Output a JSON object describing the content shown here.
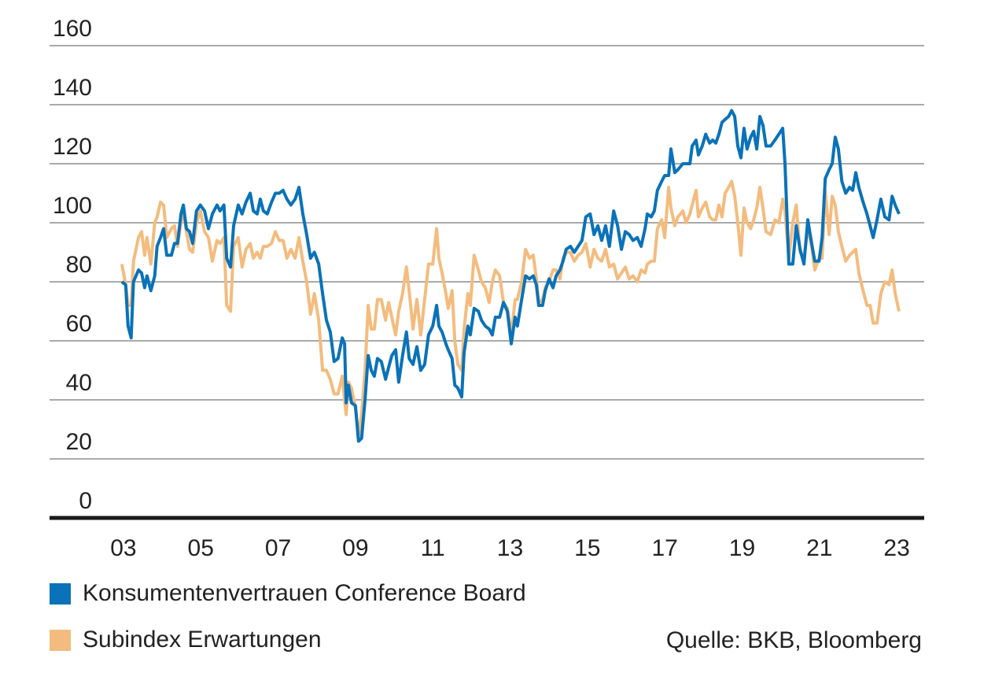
{
  "chart_data": {
    "type": "line",
    "x": [
      2002.96,
      2003.06,
      2003.12,
      2003.2,
      2003.26,
      2003.39,
      2003.47,
      2003.55,
      2003.61,
      2003.71,
      2003.81,
      2003.87,
      2003.96,
      2004.04,
      2004.12,
      2004.24,
      2004.32,
      2004.4,
      2004.49,
      2004.55,
      2004.63,
      2004.71,
      2004.79,
      2004.89,
      2004.99,
      2005.1,
      2005.2,
      2005.3,
      2005.42,
      2005.5,
      2005.6,
      2005.67,
      2005.77,
      2005.85,
      2005.97,
      2006.07,
      2006.17,
      2006.28,
      2006.36,
      2006.46,
      2006.54,
      2006.62,
      2006.72,
      2006.83,
      2006.93,
      2007.03,
      2007.13,
      2007.23,
      2007.33,
      2007.44,
      2007.54,
      2007.64,
      2007.74,
      2007.84,
      2007.94,
      2008.05,
      2008.15,
      2008.25,
      2008.35,
      2008.45,
      2008.55,
      2008.66,
      2008.72,
      2008.76,
      2008.82,
      2008.9,
      2009.0,
      2009.08,
      2009.16,
      2009.25,
      2009.33,
      2009.41,
      2009.49,
      2009.57,
      2009.67,
      2009.78,
      2009.86,
      2009.94,
      2010.04,
      2010.12,
      2010.22,
      2010.32,
      2010.39,
      2010.49,
      2010.59,
      2010.69,
      2010.79,
      2010.89,
      2011.0,
      2011.1,
      2011.16,
      2011.24,
      2011.34,
      2011.4,
      2011.5,
      2011.57,
      2011.65,
      2011.75,
      2011.81,
      2011.91,
      2011.97,
      2012.07,
      2012.18,
      2012.26,
      2012.36,
      2012.46,
      2012.54,
      2012.62,
      2012.73,
      2012.83,
      2012.93,
      2013.03,
      2013.13,
      2013.19,
      2013.3,
      2013.4,
      2013.5,
      2013.6,
      2013.68,
      2013.74,
      2013.84,
      2013.91,
      2014.01,
      2014.11,
      2014.19,
      2014.29,
      2014.37,
      2014.45,
      2014.56,
      2014.66,
      2014.76,
      2014.86,
      2014.96,
      2015.07,
      2015.17,
      2015.27,
      2015.37,
      2015.47,
      2015.57,
      2015.68,
      2015.78,
      2015.88,
      2015.98,
      2016.08,
      2016.18,
      2016.29,
      2016.39,
      2016.49,
      2016.55,
      2016.65,
      2016.73,
      2016.81,
      2016.92,
      2017.0,
      2017.1,
      2017.16,
      2017.26,
      2017.34,
      2017.47,
      2017.55,
      2017.65,
      2017.71,
      2017.81,
      2017.87,
      2017.97,
      2018.06,
      2018.16,
      2018.24,
      2018.32,
      2018.4,
      2018.48,
      2018.56,
      2018.65,
      2018.73,
      2018.81,
      2018.89,
      2018.97,
      2019.05,
      2019.13,
      2019.22,
      2019.3,
      2019.38,
      2019.46,
      2019.54,
      2019.62,
      2019.74,
      2019.85,
      2019.95,
      2020.05,
      2020.11,
      2020.21,
      2020.31,
      2020.4,
      2020.5,
      2020.6,
      2020.7,
      2020.8,
      2020.88,
      2020.99,
      2021.07,
      2021.15,
      2021.25,
      2021.33,
      2021.41,
      2021.49,
      2021.58,
      2021.68,
      2021.78,
      2021.86,
      2021.94,
      2022.02,
      2022.13,
      2022.23,
      2022.31,
      2022.39,
      2022.49,
      2022.59,
      2022.69,
      2022.8,
      2022.88,
      2022.96,
      2023.06
    ],
    "series": [
      {
        "name": "Konsumentenvertrauen Conference Board",
        "color": "#0a72b8",
        "values": [
          80,
          79,
          65,
          61,
          80,
          84,
          83,
          78,
          82,
          77,
          82,
          92,
          95,
          98,
          89,
          89,
          93,
          93,
          103,
          106,
          98,
          97,
          93,
          104,
          106,
          104,
          98,
          103,
          106,
          104,
          106,
          88,
          85,
          99,
          106,
          103,
          107,
          110,
          104,
          103,
          108,
          104,
          103,
          107,
          110,
          110,
          111,
          108,
          106,
          108,
          112,
          103,
          96,
          88,
          90,
          86,
          76,
          67,
          63,
          53,
          54,
          61,
          59,
          39,
          45,
          39,
          38,
          26,
          27,
          40,
          55,
          50,
          48,
          54,
          53,
          47,
          51,
          55,
          57,
          46,
          55,
          63,
          54,
          52,
          58,
          50,
          52,
          62,
          65,
          72,
          65,
          63,
          59,
          57,
          54,
          45,
          44,
          41,
          56,
          65,
          62,
          71,
          70,
          67,
          65,
          64,
          62,
          68,
          68,
          73,
          70,
          59,
          68,
          65,
          74,
          82,
          81,
          82,
          79,
          72,
          72,
          77,
          81,
          78,
          82,
          84,
          87,
          91,
          92,
          90,
          92,
          94,
          102,
          103,
          96,
          99,
          94,
          99,
          92,
          104,
          99,
          91,
          97,
          96,
          94,
          95,
          92,
          98,
          103,
          102,
          104,
          111,
          114,
          116,
          116,
          125,
          117,
          118,
          120,
          120,
          120,
          126,
          128,
          123,
          126,
          130,
          127,
          128,
          127,
          130,
          134,
          135,
          136,
          138,
          136,
          126,
          122,
          132,
          125,
          129,
          131,
          125,
          136,
          133,
          126,
          126,
          128,
          130,
          132,
          120,
          86,
          86,
          99,
          91,
          86,
          101,
          93,
          87,
          87,
          95,
          115,
          118,
          120,
          129,
          125,
          114,
          110,
          112,
          111,
          117,
          112,
          107,
          103,
          99,
          95,
          101,
          108,
          102,
          101,
          109,
          106,
          103
        ]
      },
      {
        "name": "Subindex Erwartungen",
        "color": "#f3bc7e",
        "values": [
          86,
          79,
          72,
          72,
          87,
          95,
          97,
          89,
          95,
          86,
          100,
          102,
          107,
          106,
          95,
          98,
          99,
          92,
          100,
          104,
          97,
          91,
          90,
          100,
          104,
          97,
          95,
          87,
          94,
          93,
          95,
          72,
          70,
          92,
          95,
          85,
          91,
          93,
          88,
          90,
          88,
          92,
          92,
          93,
          97,
          94,
          94,
          88,
          91,
          88,
          95,
          87,
          80,
          69,
          76,
          67,
          50,
          50,
          47,
          42,
          42,
          48,
          40,
          35,
          46,
          44,
          37,
          28,
          35,
          50,
          72,
          64,
          64,
          74,
          74,
          67,
          73,
          68,
          62,
          70,
          76,
          85,
          77,
          64,
          74,
          62,
          74,
          86,
          86,
          98,
          88,
          83,
          76,
          71,
          77,
          60,
          52,
          50,
          64,
          76,
          72,
          89,
          84,
          80,
          78,
          73,
          80,
          84,
          82,
          73,
          71,
          62,
          74,
          74,
          80,
          91,
          88,
          89,
          81,
          73,
          74,
          78,
          80,
          84,
          84,
          81,
          88,
          90,
          90,
          87,
          89,
          90,
          93,
          85,
          91,
          88,
          87,
          91,
          85,
          86,
          81,
          83,
          85,
          81,
          82,
          80,
          84,
          83,
          86,
          87,
          87,
          98,
          101,
          95,
          112,
          105,
          99,
          102,
          104,
          100,
          103,
          106,
          111,
          102,
          105,
          107,
          102,
          101,
          101,
          106,
          102,
          110,
          112,
          114,
          109,
          100,
          89,
          105,
          100,
          98,
          101,
          105,
          112,
          105,
          97,
          96,
          101,
          100,
          108,
          104,
          88,
          100,
          106,
          90,
          88,
          98,
          92,
          84,
          88,
          88,
          111,
          96,
          109,
          106,
          97,
          92,
          87,
          89,
          90,
          91,
          83,
          77,
          72,
          72,
          66,
          66,
          76,
          80,
          79,
          84,
          76,
          70
        ]
      }
    ],
    "xlim": [
      2001.09,
      2023.71
    ],
    "xticks": [
      {
        "value": 2003,
        "label": "03"
      },
      {
        "value": 2005,
        "label": "05"
      },
      {
        "value": 2007,
        "label": "07"
      },
      {
        "value": 2009,
        "label": "09"
      },
      {
        "value": 2011,
        "label": "11"
      },
      {
        "value": 2013,
        "label": "13"
      },
      {
        "value": 2015,
        "label": "15"
      },
      {
        "value": 2017,
        "label": "17"
      },
      {
        "value": 2019,
        "label": "19"
      },
      {
        "value": 2021,
        "label": "21"
      },
      {
        "value": 2023,
        "label": "23"
      }
    ],
    "ylim": [
      0,
      160
    ],
    "yticks": [
      0,
      20,
      40,
      60,
      80,
      100,
      120,
      140,
      160
    ],
    "grid": true,
    "source": "Quelle: BKB, Bloomberg"
  }
}
